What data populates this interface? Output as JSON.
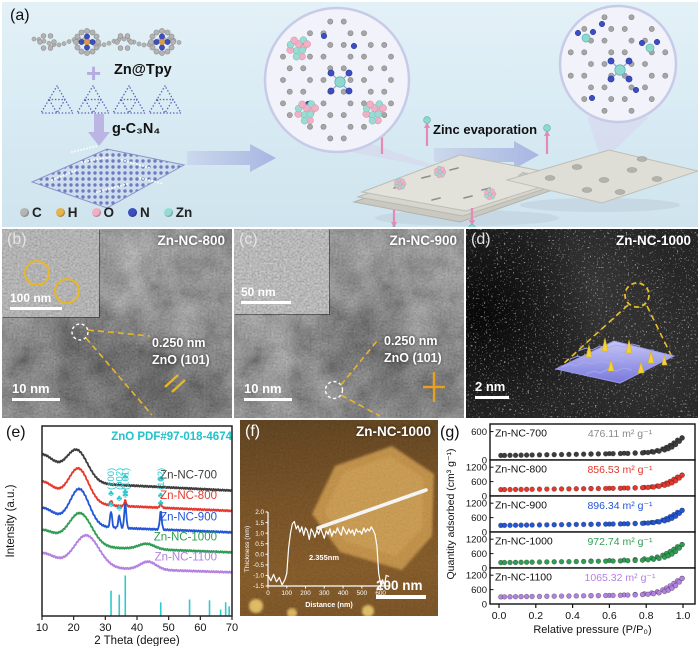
{
  "panels": {
    "a": {
      "label": "(a)",
      "reagent_top": "Zn@Tpy",
      "plus_sign": "+",
      "reagent_bottom": "g-C₃N₄",
      "process_arrow_label": "Zinc evaporation",
      "atom_legend": [
        {
          "name": "C",
          "color": "#b5b5b5"
        },
        {
          "name": "H",
          "color": "#e2b64d"
        },
        {
          "name": "O",
          "color": "#f2aec4"
        },
        {
          "name": "N",
          "color": "#3c4ec2"
        },
        {
          "name": "Zn",
          "color": "#97dcd2"
        }
      ]
    },
    "b": {
      "label": "(b)",
      "title": "Zn-NC-800",
      "inset_scale_bar": "100 nm",
      "scale_bar": "10 nm",
      "lattice_annotation": [
        "0.250 nm",
        "ZnO (101)"
      ]
    },
    "c": {
      "label": "(c)",
      "title": "Zn-NC-900",
      "inset_scale_bar": "50 nm",
      "scale_bar": "10 nm",
      "lattice_annotation": [
        "0.250 nm",
        "ZnO (101)"
      ]
    },
    "d": {
      "label": "(d)",
      "title": "Zn-NC-1000",
      "scale_bar": "2 nm"
    },
    "e": {
      "label": "(e)"
    },
    "f": {
      "label": "(f)",
      "title": "Zn-NC-1000",
      "scale_bar": "200 nm"
    },
    "g": {
      "label": "(g)"
    }
  },
  "chart_data": [
    {
      "id": "xrd",
      "type": "line",
      "title": "ZnO PDF#97-018-4674",
      "title_color": "#1fc3c9",
      "xlabel": "2 Theta (degree)",
      "ylabel": "Intensity (a.u.)",
      "xlim": [
        10,
        70
      ],
      "xticks": [
        10,
        20,
        30,
        40,
        50,
        60,
        70
      ],
      "peak_hkl_labels": [
        {
          "text": "(100)",
          "two_theta": 31.8
        },
        {
          "text": "(002)",
          "two_theta": 34.4
        },
        {
          "text": "(101)",
          "two_theta": 36.3
        },
        {
          "text": "(102)",
          "two_theta": 47.5
        }
      ],
      "series": [
        {
          "name": "Zn-NC-700",
          "color": "#3d3d3d",
          "baseline": 0.66,
          "left_tail": 0.14,
          "slope": 0.05,
          "hump": {
            "center": 21,
            "width": 4.8,
            "height": 0.17
          },
          "peaks": [],
          "marker_positions": [
            36.3,
            47.5
          ]
        },
        {
          "name": "Zn-NC-800",
          "color": "#e6382c",
          "baseline": 0.553,
          "left_tail": 0.11,
          "slope": 0.045,
          "hump": {
            "center": 21.5,
            "width": 4.5,
            "height": 0.185
          },
          "peaks": [
            {
              "two_theta": 31.8,
              "height": 0.025
            },
            {
              "two_theta": 36.3,
              "height": 0.03
            },
            {
              "two_theta": 47.5,
              "height": 0.02
            }
          ],
          "marker_positions": [
            31.8,
            34.4,
            36.3,
            47.5
          ]
        },
        {
          "name": "Zn-NC-900",
          "color": "#2356d6",
          "baseline": 0.44,
          "left_tail": 0.09,
          "slope": 0.04,
          "hump": {
            "center": 21.8,
            "width": 4.3,
            "height": 0.195
          },
          "peaks": [
            {
              "two_theta": 31.8,
              "height": 0.085
            },
            {
              "two_theta": 34.4,
              "height": 0.065
            },
            {
              "two_theta": 36.3,
              "height": 0.13
            },
            {
              "two_theta": 47.5,
              "height": 0.095
            }
          ],
          "marker_positions": [
            31.8,
            34.4,
            36.3,
            47.5
          ]
        },
        {
          "name": "Zn-NC-1000",
          "color": "#2f9e52",
          "baseline": 0.335,
          "left_tail": 0.08,
          "slope": 0.038,
          "hump": {
            "center": 22,
            "width": 5.2,
            "height": 0.175
          },
          "peaks": [],
          "broad_bump": {
            "center": 43,
            "width": 3.6,
            "height": 0.028
          },
          "marker_positions": []
        },
        {
          "name": "Zn-NC-1100",
          "color": "#b381e0",
          "baseline": 0.23,
          "left_tail": 0.07,
          "slope": 0.032,
          "hump": {
            "center": 24,
            "width": 5.6,
            "height": 0.17
          },
          "peaks": [],
          "broad_bump": {
            "center": 43.5,
            "width": 3.6,
            "height": 0.042
          },
          "marker_positions": []
        }
      ],
      "reference_pattern": {
        "label": "ZnO",
        "color": "#2fc9cf",
        "marker_symbol": "♣",
        "sticks": [
          [
            31.8,
            0.62
          ],
          [
            34.4,
            0.52
          ],
          [
            36.3,
            1.0
          ],
          [
            47.5,
            0.33
          ],
          [
            56.6,
            0.4
          ],
          [
            62.9,
            0.38
          ],
          [
            66.4,
            0.15
          ],
          [
            68.0,
            0.33
          ],
          [
            69.1,
            0.23
          ]
        ]
      }
    },
    {
      "id": "afm_profile",
      "type": "line",
      "xlabel": "Distance (nm)",
      "ylabel": "Thickness (nm)",
      "xlim": [
        0,
        650
      ],
      "ylim": [
        -1.5,
        2.0
      ],
      "xticks": [
        0,
        100,
        200,
        300,
        400,
        500,
        600
      ],
      "yticks": [
        2.0,
        1.5,
        1.0,
        0.5,
        0.0,
        -0.5,
        -1.0,
        -1.5
      ],
      "annotation": "2.355nm",
      "points": [
        [
          0,
          -1.0
        ],
        [
          15,
          -1.25
        ],
        [
          30,
          -0.95
        ],
        [
          45,
          -1.3
        ],
        [
          60,
          -1.1
        ],
        [
          75,
          -1.45
        ],
        [
          90,
          -1.2
        ],
        [
          100,
          -0.9
        ],
        [
          110,
          0.3
        ],
        [
          120,
          1.0
        ],
        [
          130,
          1.45
        ],
        [
          140,
          1.55
        ],
        [
          150,
          1.2
        ],
        [
          160,
          1.35
        ],
        [
          170,
          1.05
        ],
        [
          180,
          1.3
        ],
        [
          190,
          0.9
        ],
        [
          200,
          1.25
        ],
        [
          210,
          1.1
        ],
        [
          220,
          0.7
        ],
        [
          230,
          1.2
        ],
        [
          240,
          1.05
        ],
        [
          250,
          0.8
        ],
        [
          260,
          1.15
        ],
        [
          270,
          0.95
        ],
        [
          280,
          1.25
        ],
        [
          290,
          1.0
        ],
        [
          300,
          0.75
        ],
        [
          310,
          1.1
        ],
        [
          320,
          0.95
        ],
        [
          330,
          1.2
        ],
        [
          340,
          0.85
        ],
        [
          350,
          1.1
        ],
        [
          360,
          1.0
        ],
        [
          370,
          1.25
        ],
        [
          380,
          1.05
        ],
        [
          390,
          0.9
        ],
        [
          400,
          1.3
        ],
        [
          410,
          1.1
        ],
        [
          420,
          0.95
        ],
        [
          430,
          1.2
        ],
        [
          440,
          1.0
        ],
        [
          450,
          1.15
        ],
        [
          460,
          0.9
        ],
        [
          470,
          1.2
        ],
        [
          480,
          1.05
        ],
        [
          490,
          1.1
        ],
        [
          500,
          0.95
        ],
        [
          510,
          1.25
        ],
        [
          520,
          1.05
        ],
        [
          530,
          1.2
        ],
        [
          540,
          1.1
        ],
        [
          550,
          1.3
        ],
        [
          560,
          1.15
        ],
        [
          570,
          0.95
        ],
        [
          580,
          0.4
        ],
        [
          590,
          -0.9
        ],
        [
          600,
          -1.4
        ],
        [
          610,
          -1.2
        ],
        [
          620,
          -1.45
        ],
        [
          630,
          -1.0
        ],
        [
          645,
          -1.05
        ]
      ]
    },
    {
      "id": "isotherms",
      "type": "scatter",
      "xlabel": "Relative pressure (P/P₀)",
      "ylabel": "Quantity adsorbed (cm³ g⁻¹)",
      "xticks": [
        "0.0",
        "0.2",
        "0.4",
        "0.6",
        "0.8",
        "1.0"
      ],
      "x": [
        0.01,
        0.03,
        0.06,
        0.09,
        0.12,
        0.15,
        0.18,
        0.22,
        0.26,
        0.3,
        0.34,
        0.38,
        0.42,
        0.46,
        0.5,
        0.54,
        0.58,
        0.62,
        0.66,
        0.7,
        0.74,
        0.78,
        0.81,
        0.84,
        0.87,
        0.9,
        0.92,
        0.94,
        0.96,
        0.98,
        0.995
      ],
      "panels": [
        {
          "name": "Zn-NC-700",
          "area_label": "476.11 m² g⁻¹",
          "color": "#3d3d3d",
          "area_color": "#8a8a8a",
          "ymax": 760,
          "yticks": [
            0,
            600
          ],
          "y_adsorption": [
            96,
            97,
            99,
            100,
            102,
            104,
            106,
            108,
            111,
            113,
            115,
            118,
            120,
            123,
            125,
            128,
            130,
            133,
            136,
            139,
            144,
            150,
            158,
            168,
            186,
            212,
            238,
            274,
            325,
            394,
            463
          ],
          "desorption": [
            [
              0.995,
              470
            ],
            [
              0.97,
              420
            ],
            [
              0.95,
              360
            ],
            [
              0.93,
              310
            ],
            [
              0.91,
              268
            ],
            [
              0.89,
              235
            ],
            [
              0.86,
              200
            ],
            [
              0.83,
              178
            ],
            [
              0.79,
              160
            ],
            [
              0.74,
              150
            ],
            [
              0.68,
              143
            ],
            [
              0.6,
              135
            ],
            [
              0.5,
              128
            ]
          ]
        },
        {
          "name": "Zn-NC-800",
          "area_label": "856.53 m² g⁻¹",
          "color": "#e6382c",
          "area_color": "#e6382c",
          "ymax": 1500,
          "yticks": [
            0,
            600,
            1200
          ],
          "y_adsorption": [
            266,
            268,
            270,
            273,
            275,
            278,
            280,
            284,
            287,
            291,
            294,
            297,
            301,
            304,
            308,
            311,
            314,
            319,
            323,
            329,
            335,
            345,
            358,
            375,
            404,
            447,
            490,
            550,
            634,
            749,
            865
          ],
          "desorption": [
            [
              0.995,
              872
            ],
            [
              0.97,
              790
            ],
            [
              0.95,
              700
            ],
            [
              0.93,
              615
            ],
            [
              0.91,
              540
            ],
            [
              0.89,
              480
            ],
            [
              0.86,
              420
            ],
            [
              0.83,
              385
            ],
            [
              0.79,
              360
            ],
            [
              0.74,
              345
            ],
            [
              0.68,
              332
            ],
            [
              0.6,
              322
            ],
            [
              0.5,
              312
            ]
          ]
        },
        {
          "name": "Zn-NC-900",
          "area_label": "896.34 m² g⁻¹",
          "color": "#2356d6",
          "area_color": "#2356d6",
          "ymax": 1500,
          "yticks": [
            0,
            600,
            1200
          ],
          "y_adsorption": [
            276,
            278,
            280,
            283,
            286,
            289,
            291,
            295,
            298,
            302,
            306,
            309,
            313,
            316,
            320,
            324,
            327,
            332,
            336,
            342,
            350,
            360,
            373,
            392,
            420,
            465,
            510,
            573,
            658,
            778,
            898
          ],
          "desorption": [
            [
              0.995,
              905
            ],
            [
              0.97,
              820
            ],
            [
              0.95,
              725
            ],
            [
              0.93,
              640
            ],
            [
              0.91,
              562
            ],
            [
              0.89,
              500
            ],
            [
              0.86,
              437
            ],
            [
              0.83,
              400
            ],
            [
              0.79,
              372
            ],
            [
              0.74,
              356
            ],
            [
              0.68,
              342
            ],
            [
              0.6,
              330
            ],
            [
              0.5,
              322
            ]
          ]
        },
        {
          "name": "Zn-NC-1000",
          "area_label": "972.74 m² g⁻¹",
          "color": "#2f9e52",
          "area_color": "#2f9e52",
          "ymax": 1500,
          "yticks": [
            0,
            600,
            1200
          ],
          "y_adsorption": [
            226,
            228,
            231,
            234,
            238,
            241,
            244,
            248,
            252,
            257,
            261,
            265,
            269,
            273,
            278,
            282,
            286,
            291,
            297,
            304,
            312,
            325,
            340,
            362,
            397,
            451,
            506,
            581,
            685,
            829,
            972
          ],
          "desorption": [
            [
              0.995,
              980
            ],
            [
              0.97,
              890
            ],
            [
              0.95,
              785
            ],
            [
              0.93,
              690
            ],
            [
              0.91,
              605
            ],
            [
              0.89,
              535
            ],
            [
              0.86,
              462
            ],
            [
              0.83,
              418
            ],
            [
              0.79,
              382
            ],
            [
              0.74,
              352
            ],
            [
              0.68,
              330
            ],
            [
              0.6,
              310
            ],
            [
              0.5,
              292
            ]
          ]
        },
        {
          "name": "Zn-NC-1100",
          "area_label": "1065.32 m² g⁻¹",
          "color": "#b381e0",
          "area_color": "#b381e0",
          "ymax": 1500,
          "yticks": [
            0,
            600,
            1200
          ],
          "y_adsorption": [
            296,
            298,
            301,
            304,
            307,
            310,
            313,
            317,
            321,
            325,
            329,
            333,
            337,
            341,
            345,
            349,
            353,
            358,
            364,
            371,
            379,
            391,
            407,
            430,
            466,
            522,
            578,
            657,
            765,
            916,
            1065
          ],
          "desorption": [
            [
              0.995,
              1072
            ],
            [
              0.97,
              975
            ],
            [
              0.95,
              862
            ],
            [
              0.93,
              760
            ],
            [
              0.91,
              668
            ],
            [
              0.89,
              592
            ],
            [
              0.86,
              512
            ],
            [
              0.83,
              465
            ],
            [
              0.79,
              428
            ],
            [
              0.74,
              400
            ],
            [
              0.68,
              378
            ],
            [
              0.6,
              360
            ],
            [
              0.5,
              348
            ]
          ]
        }
      ]
    }
  ]
}
